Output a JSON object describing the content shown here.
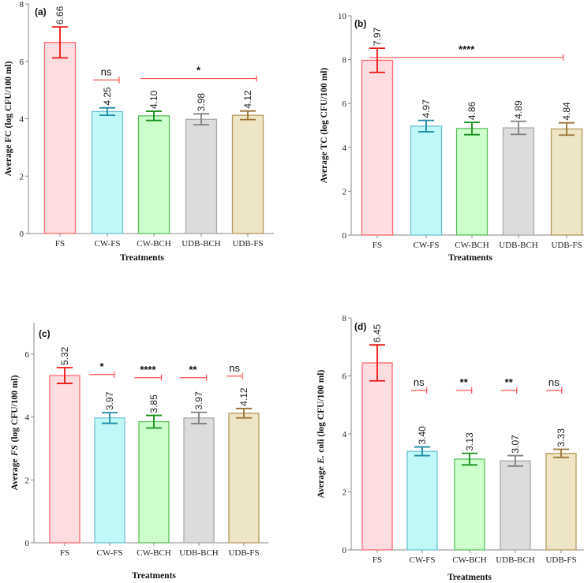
{
  "chart_data": [
    {
      "type": "bar",
      "panel": "(a)",
      "categories": [
        "FS",
        "CW-FS",
        "CW-BCH",
        "UDB-BCH",
        "UDB-FS"
      ],
      "values": [
        6.66,
        4.25,
        4.1,
        3.98,
        4.12
      ],
      "value_labels": [
        "6.66",
        "4.25",
        "4.10",
        "3.98",
        "4.12"
      ],
      "errors": [
        0.54,
        0.13,
        0.16,
        0.19,
        0.15
      ],
      "xlabel": "Treatments",
      "ylabel": "Average FC  (log CFU/100 ml)",
      "ylim": [
        0,
        8
      ],
      "yticks": [
        "0",
        "2",
        "4",
        "6",
        "8"
      ],
      "annotations": [
        {
          "label": "ns",
          "from": 0.7,
          "to": 1.25,
          "y": 5.35
        },
        {
          "label": "*",
          "from": 1.7,
          "to": 4.15,
          "y": 5.4
        }
      ]
    },
    {
      "type": "bar",
      "panel": "(b)",
      "categories": [
        "FS",
        "CW-FS",
        "CW-BCH",
        "UDB-BCH",
        "UDB-FS"
      ],
      "values": [
        7.97,
        4.97,
        4.86,
        4.89,
        4.84
      ],
      "value_labels": [
        "7.97",
        "4.97",
        "4.86",
        "4.89",
        "4.84"
      ],
      "errors": [
        0.55,
        0.26,
        0.28,
        0.3,
        0.28
      ],
      "xlabel": "Treatments",
      "ylabel": "Average TC  (log CFU/100 ml)",
      "ylim": [
        0,
        10
      ],
      "yticks": [
        "0",
        "2",
        "4",
        "6",
        "8",
        "10"
      ],
      "annotations": [
        {
          "label": "****",
          "from": -0.15,
          "to": 3.8,
          "y": 8.1
        }
      ]
    },
    {
      "type": "bar",
      "panel": "(c)",
      "categories": [
        "FS",
        "CW-FS",
        "CW-BCH",
        "UDB-BCH",
        "UDB-FS"
      ],
      "values": [
        5.32,
        3.97,
        3.85,
        3.97,
        4.12
      ],
      "value_labels": [
        "5.32",
        "3.97",
        "3.85",
        "3.97",
        "4.12"
      ],
      "errors": [
        0.25,
        0.17,
        0.2,
        0.18,
        0.15
      ],
      "xlabel": "Treatments",
      "ylabel_prefix": "Average ",
      "ylabel_italic": "FS",
      "ylabel_suffix": " (log CFU/100 ml)",
      "ylim": [
        0,
        7
      ],
      "yticks": [
        "0",
        "2",
        "4",
        "6"
      ],
      "annotations": [
        {
          "label": "*",
          "from": 0.55,
          "to": 1.1,
          "y": 5.35
        },
        {
          "label": "****",
          "from": 1.55,
          "to": 2.15,
          "y": 5.25
        },
        {
          "label": "**",
          "from": 2.55,
          "to": 3.15,
          "y": 5.25
        },
        {
          "label": "ns",
          "from": 3.6,
          "to": 3.95,
          "y": 5.3
        }
      ]
    },
    {
      "type": "bar",
      "panel": "(d)",
      "categories": [
        "FS",
        "CW-FS",
        "CW-BCH",
        "UDB-BCH",
        "UDB-FS"
      ],
      "values": [
        6.45,
        3.4,
        3.13,
        3.07,
        3.33
      ],
      "value_labels": [
        "6.45",
        "3.40",
        "3.13",
        "3.07",
        "3.33"
      ],
      "errors": [
        0.62,
        0.15,
        0.2,
        0.18,
        0.14
      ],
      "xlabel": "Treatments",
      "ylabel_prefix": "Average ",
      "ylabel_italic": "E.",
      "ylabel_suffix": " coli (log CFU/100 ml)",
      "ylim": [
        0,
        8
      ],
      "yticks": [
        "0",
        "2",
        "4",
        "6",
        "8"
      ],
      "annotations": [
        {
          "label": "ns",
          "from": 0.75,
          "to": 1.1,
          "y": 5.5
        },
        {
          "label": "**",
          "from": 1.75,
          "to": 2.1,
          "y": 5.5
        },
        {
          "label": "**",
          "from": 2.75,
          "to": 3.1,
          "y": 5.5
        },
        {
          "label": "ns",
          "from": 3.75,
          "to": 4.1,
          "y": 5.5
        }
      ]
    }
  ],
  "colors": {
    "fill": [
      "#ffdde0",
      "#c0f7f7",
      "#ccffcc",
      "#dcdcdc",
      "#ede5c6"
    ],
    "stroke": [
      "#ff6a70",
      "#6cc3d2",
      "#5cbf5c",
      "#a8a8a8",
      "#b8995e"
    ],
    "error": [
      "#ee1515",
      "#1a8aa0",
      "#1a8f1a",
      "#808080",
      "#9a7230"
    ],
    "annotation_line": "#ff5050",
    "axis": "#888888"
  }
}
